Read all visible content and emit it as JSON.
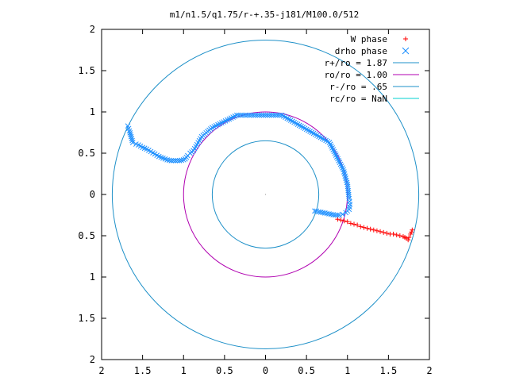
{
  "chart_data": {
    "type": "scatter",
    "title": "m1/n1.5/q1.75/r-+.35-j181/M100.0/512",
    "xlabel": "",
    "ylabel": "",
    "xlim": [
      -2,
      2
    ],
    "ylim": [
      -2,
      2
    ],
    "x_tick_labels": [
      "2",
      "1.5",
      "1",
      "0.5",
      "0",
      "0.5",
      "1",
      "1.5",
      "2"
    ],
    "y_tick_labels": [
      "2",
      "1.5",
      "1",
      "0.5",
      "0",
      "0.5",
      "1",
      "1.5",
      "2"
    ],
    "grid": false,
    "legend_position": "top-right",
    "series": [
      {
        "name": "W phase",
        "kind": "points",
        "marker": "+",
        "color": "#ff0000",
        "x": [
          0.88,
          0.92,
          0.96,
          1.0,
          1.04,
          1.08,
          1.12,
          1.16,
          1.2,
          1.24,
          1.28,
          1.32,
          1.36,
          1.4,
          1.44,
          1.48,
          1.52,
          1.56,
          1.6,
          1.64,
          1.68,
          1.7,
          1.72,
          1.74,
          1.75,
          1.77,
          1.79
        ],
        "y": [
          -0.3,
          -0.31,
          -0.32,
          -0.33,
          -0.35,
          -0.36,
          -0.37,
          -0.39,
          -0.4,
          -0.41,
          -0.42,
          -0.43,
          -0.44,
          -0.45,
          -0.46,
          -0.47,
          -0.48,
          -0.48,
          -0.49,
          -0.5,
          -0.51,
          -0.52,
          -0.53,
          -0.55,
          -0.52,
          -0.48,
          -0.43
        ]
      },
      {
        "name": "drho phase",
        "kind": "points",
        "marker": "x",
        "color": "#1e90ff",
        "x": [
          -1.68,
          -1.66,
          -1.62,
          -1.58,
          -1.55,
          -1.5,
          -1.45,
          -1.4,
          -1.35,
          -1.3,
          -1.25,
          -1.2,
          -1.15,
          -1.1,
          -1.05,
          -1.0,
          -0.98,
          -0.95,
          -0.92,
          -0.88,
          -0.85,
          -0.78,
          -0.65,
          -0.35,
          0.2,
          0.78,
          0.95,
          1.0,
          1.02,
          1.03,
          1.02,
          0.98,
          0.94,
          0.9,
          0.85,
          0.8,
          0.75,
          0.7,
          0.65,
          0.62,
          0.6
        ],
        "y": [
          0.83,
          0.77,
          0.63,
          0.61,
          0.6,
          0.57,
          0.55,
          0.52,
          0.49,
          0.46,
          0.44,
          0.42,
          0.41,
          0.41,
          0.41,
          0.42,
          0.43,
          0.47,
          0.5,
          0.53,
          0.58,
          0.7,
          0.81,
          0.96,
          0.96,
          0.63,
          0.3,
          0.12,
          -0.05,
          -0.12,
          -0.18,
          -0.22,
          -0.24,
          -0.25,
          -0.25,
          -0.24,
          -0.23,
          -0.22,
          -0.21,
          -0.2,
          -0.2
        ]
      },
      {
        "name": "r+/ro = 1.87",
        "kind": "circle",
        "radius": 1.87,
        "color": "#1e90c8"
      },
      {
        "name": "ro/ro = 1.00",
        "kind": "circle",
        "radius": 1.0,
        "color": "#b000b0"
      },
      {
        "name": "r-/ro = .65",
        "kind": "circle",
        "radius": 0.65,
        "color": "#1e90c8"
      },
      {
        "name": "rc/ro = NaN",
        "kind": "circle",
        "radius": null,
        "color": "#00d0d0"
      }
    ]
  }
}
